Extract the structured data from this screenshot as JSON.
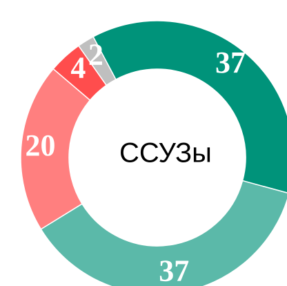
{
  "chart_data": {
    "type": "pie",
    "center_label": "ССУЗы",
    "categories": [
      null,
      null,
      null,
      null,
      null
    ],
    "values": [
      37,
      37,
      20,
      4,
      2
    ],
    "colors": [
      "#00937a",
      "#5bb9a9",
      "#ff7f7f",
      "#ff4d4d",
      "#bfbfbf"
    ]
  }
}
